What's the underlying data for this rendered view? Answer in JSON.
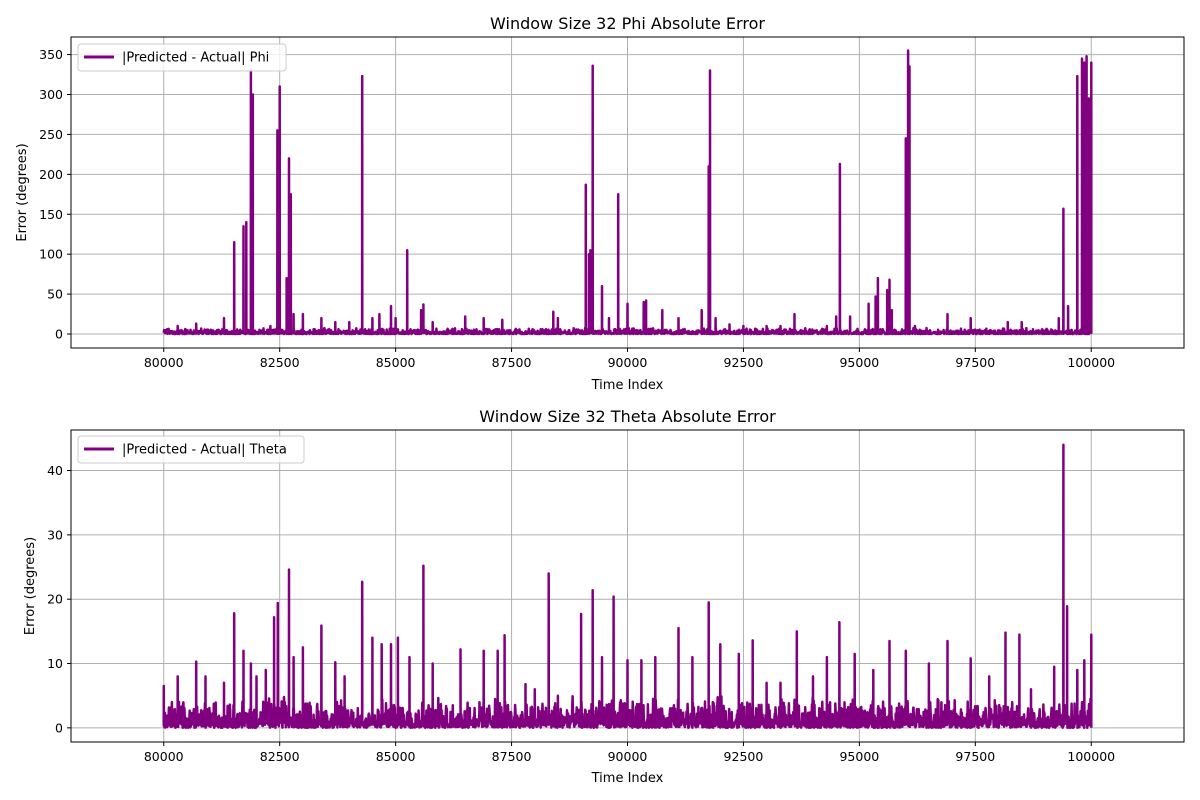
{
  "chart_data": [
    {
      "type": "line",
      "title": "Window Size 32 Phi Absolute Error",
      "xlabel": "Time Index",
      "ylabel": "Error (degrees)",
      "xlim": [
        78000,
        102000
      ],
      "ylim": [
        -17.5,
        372
      ],
      "xticks": [
        80000,
        82500,
        85000,
        87500,
        90000,
        92500,
        95000,
        97500,
        100000
      ],
      "yticks": [
        0,
        50,
        100,
        150,
        200,
        250,
        300,
        350
      ],
      "grid": true,
      "legend_position": "upper left",
      "color": "#800080",
      "series": [
        {
          "name": "|Predicted - Actual| Phi",
          "baseline_max": 8,
          "spikes": [
            [
              80300,
              10
            ],
            [
              80700,
              13
            ],
            [
              81300,
              20
            ],
            [
              81520,
              115
            ],
            [
              81720,
              135
            ],
            [
              81780,
              140
            ],
            [
              81880,
              330
            ],
            [
              81920,
              300
            ],
            [
              82300,
              10
            ],
            [
              82450,
              255
            ],
            [
              82500,
              310
            ],
            [
              82650,
              70
            ],
            [
              82700,
              220
            ],
            [
              82740,
              175
            ],
            [
              82800,
              25
            ],
            [
              83000,
              25
            ],
            [
              83400,
              20
            ],
            [
              83700,
              15
            ],
            [
              84000,
              15
            ],
            [
              84280,
              323
            ],
            [
              84500,
              20
            ],
            [
              84650,
              25
            ],
            [
              84900,
              35
            ],
            [
              85000,
              20
            ],
            [
              85250,
              105
            ],
            [
              85550,
              30
            ],
            [
              85600,
              37
            ],
            [
              85800,
              15
            ],
            [
              86500,
              22
            ],
            [
              86900,
              20
            ],
            [
              87300,
              18
            ],
            [
              88400,
              28
            ],
            [
              88500,
              20
            ],
            [
              89100,
              187
            ],
            [
              89170,
              100
            ],
            [
              89200,
              105
            ],
            [
              89250,
              336
            ],
            [
              89450,
              60
            ],
            [
              89600,
              20
            ],
            [
              89800,
              175
            ],
            [
              90000,
              38
            ],
            [
              90350,
              40
            ],
            [
              90400,
              42
            ],
            [
              90750,
              30
            ],
            [
              91100,
              20
            ],
            [
              91600,
              30
            ],
            [
              91750,
              210
            ],
            [
              91780,
              330
            ],
            [
              91900,
              20
            ],
            [
              92200,
              12
            ],
            [
              92500,
              10
            ],
            [
              93000,
              10
            ],
            [
              93300,
              10
            ],
            [
              93600,
              25
            ],
            [
              94300,
              10
            ],
            [
              94500,
              22
            ],
            [
              94580,
              213
            ],
            [
              94800,
              22
            ],
            [
              95200,
              38
            ],
            [
              95350,
              47
            ],
            [
              95400,
              70
            ],
            [
              95600,
              55
            ],
            [
              95650,
              68
            ],
            [
              95700,
              30
            ],
            [
              96000,
              245
            ],
            [
              96050,
              355
            ],
            [
              96080,
              335
            ],
            [
              96200,
              10
            ],
            [
              96900,
              25
            ],
            [
              97400,
              20
            ],
            [
              98200,
              15
            ],
            [
              98500,
              15
            ],
            [
              99300,
              20
            ],
            [
              99400,
              157
            ],
            [
              99500,
              35
            ],
            [
              99700,
              323
            ],
            [
              99800,
              345
            ],
            [
              99850,
              340
            ],
            [
              99900,
              348
            ],
            [
              99950,
              295
            ],
            [
              100000,
              340
            ]
          ]
        }
      ]
    },
    {
      "type": "line",
      "title": "Window Size 32 Theta Absolute Error",
      "xlabel": "Time Index",
      "ylabel": "Error (degrees)",
      "xlim": [
        78000,
        102000
      ],
      "ylim": [
        -2.2,
        46.3
      ],
      "xticks": [
        80000,
        82500,
        85000,
        87500,
        90000,
        92500,
        95000,
        97500,
        100000
      ],
      "yticks": [
        0,
        10,
        20,
        30,
        40
      ],
      "grid": true,
      "legend_position": "upper left",
      "color": "#800080",
      "series": [
        {
          "name": "|Predicted - Actual| Theta",
          "baseline_max": 5,
          "spikes": [
            [
              80000,
              6.5
            ],
            [
              80300,
              8
            ],
            [
              80700,
              10.3
            ],
            [
              80900,
              8
            ],
            [
              81300,
              7
            ],
            [
              81520,
              17.8
            ],
            [
              81720,
              12
            ],
            [
              81880,
              10
            ],
            [
              82000,
              8
            ],
            [
              82200,
              9
            ],
            [
              82380,
              17.2
            ],
            [
              82460,
              19.4
            ],
            [
              82700,
              24.6
            ],
            [
              82800,
              11
            ],
            [
              83000,
              12.5
            ],
            [
              83400,
              15.9
            ],
            [
              83700,
              10.2
            ],
            [
              83900,
              8
            ],
            [
              84280,
              22.7
            ],
            [
              84500,
              14
            ],
            [
              84700,
              13
            ],
            [
              84900,
              13
            ],
            [
              85050,
              14
            ],
            [
              85300,
              11
            ],
            [
              85600,
              25.2
            ],
            [
              85800,
              10
            ],
            [
              86400,
              12.2
            ],
            [
              86900,
              12
            ],
            [
              87200,
              12
            ],
            [
              87350,
              14.4
            ],
            [
              87800,
              6.8
            ],
            [
              88000,
              6
            ],
            [
              88300,
              24
            ],
            [
              88500,
              5
            ],
            [
              89000,
              17.7
            ],
            [
              89250,
              21.4
            ],
            [
              89450,
              11
            ],
            [
              89700,
              20.4
            ],
            [
              90000,
              10.5
            ],
            [
              90300,
              10.5
            ],
            [
              90600,
              11
            ],
            [
              91100,
              15.5
            ],
            [
              91400,
              11
            ],
            [
              91750,
              19.5
            ],
            [
              92000,
              13
            ],
            [
              92400,
              11.5
            ],
            [
              92700,
              13.6
            ],
            [
              93000,
              7
            ],
            [
              93300,
              7
            ],
            [
              93650,
              15
            ],
            [
              94000,
              8
            ],
            [
              94300,
              11
            ],
            [
              94570,
              16.4
            ],
            [
              94900,
              11.5
            ],
            [
              95300,
              9
            ],
            [
              95650,
              13.5
            ],
            [
              96000,
              12
            ],
            [
              96500,
              10
            ],
            [
              96900,
              13.5
            ],
            [
              97400,
              10.8
            ],
            [
              97800,
              8
            ],
            [
              98150,
              14.8
            ],
            [
              98450,
              14.5
            ],
            [
              98700,
              6
            ],
            [
              99200,
              9.5
            ],
            [
              99400,
              44
            ],
            [
              99480,
              18.9
            ],
            [
              99700,
              9
            ],
            [
              99850,
              10.5
            ],
            [
              100000,
              14.5
            ]
          ]
        }
      ]
    }
  ]
}
